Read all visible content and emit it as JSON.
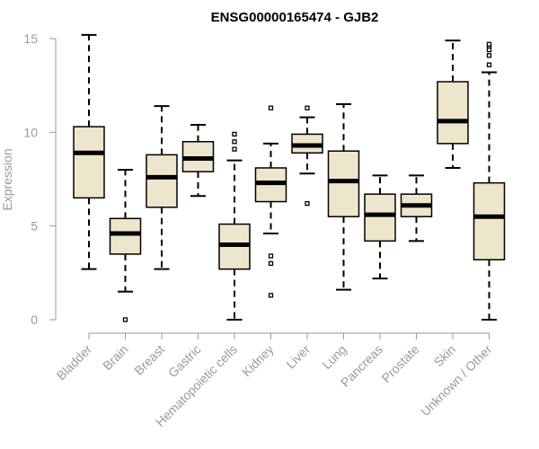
{
  "chart_data": {
    "type": "box",
    "title": "ENSG00000165474 - GJB2",
    "xlabel": "",
    "ylabel": "Expression",
    "ylim": [
      0,
      15
    ],
    "yticks": [
      0,
      5,
      10,
      15
    ],
    "grid": false,
    "colors": {
      "box_fill": "#ede6cc",
      "box_stroke": "#000000",
      "median": "#000000",
      "axis": "#9a9a9a"
    },
    "categories": [
      "Bladder",
      "Brain",
      "Breast",
      "Gastric",
      "Hematopoietic cells",
      "Kidney",
      "Liver",
      "Lung",
      "Pancreas",
      "Prostate",
      "Skin",
      "Unknown / Other"
    ],
    "boxes": [
      {
        "label": "Bladder",
        "whisker_low": 2.7,
        "q1": 6.5,
        "median": 8.9,
        "q3": 10.3,
        "whisker_high": 15.2,
        "outliers": []
      },
      {
        "label": "Brain",
        "whisker_low": 1.5,
        "q1": 3.5,
        "median": 4.6,
        "q3": 5.4,
        "whisker_high": 8.0,
        "outliers": [
          0.0
        ]
      },
      {
        "label": "Breast",
        "whisker_low": 2.7,
        "q1": 6.0,
        "median": 7.6,
        "q3": 8.8,
        "whisker_high": 11.4,
        "outliers": []
      },
      {
        "label": "Gastric",
        "whisker_low": 6.6,
        "q1": 7.9,
        "median": 8.6,
        "q3": 9.5,
        "whisker_high": 10.4,
        "outliers": []
      },
      {
        "label": "Hematopoietic cells",
        "whisker_low": 0.0,
        "q1": 2.7,
        "median": 4.0,
        "q3": 5.1,
        "whisker_high": 8.5,
        "outliers": [
          9.1,
          9.5,
          9.9
        ]
      },
      {
        "label": "Kidney",
        "whisker_low": 4.6,
        "q1": 6.3,
        "median": 7.3,
        "q3": 8.1,
        "whisker_high": 9.4,
        "outliers": [
          11.3,
          3.4,
          3.0,
          1.3
        ]
      },
      {
        "label": "Liver",
        "whisker_low": 7.8,
        "q1": 8.9,
        "median": 9.3,
        "q3": 9.9,
        "whisker_high": 10.8,
        "outliers": [
          11.3,
          6.2
        ]
      },
      {
        "label": "Lung",
        "whisker_low": 1.6,
        "q1": 5.5,
        "median": 7.4,
        "q3": 9.0,
        "whisker_high": 11.5,
        "outliers": []
      },
      {
        "label": "Pancreas",
        "whisker_low": 2.2,
        "q1": 4.2,
        "median": 5.6,
        "q3": 6.7,
        "whisker_high": 7.7,
        "outliers": []
      },
      {
        "label": "Prostate",
        "whisker_low": 4.2,
        "q1": 5.5,
        "median": 6.1,
        "q3": 6.7,
        "whisker_high": 7.7,
        "outliers": []
      },
      {
        "label": "Skin",
        "whisker_low": 8.1,
        "q1": 9.4,
        "median": 10.6,
        "q3": 12.7,
        "whisker_high": 14.9,
        "outliers": []
      },
      {
        "label": "Unknown / Other",
        "whisker_low": 0.0,
        "q1": 3.2,
        "median": 5.5,
        "q3": 7.3,
        "whisker_high": 13.2,
        "outliers": [
          13.6,
          14.1,
          14.4,
          14.6,
          14.7
        ]
      }
    ]
  }
}
